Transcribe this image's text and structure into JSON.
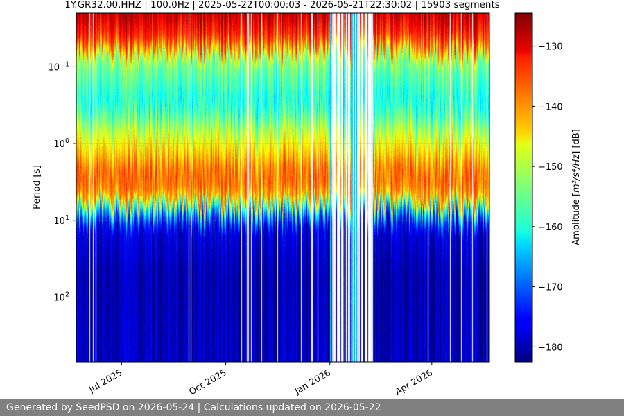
{
  "chart_data": {
    "type": "heatmap",
    "title": "1Y.GR32.00.HHZ | 100.0Hz | 2025-05-22T00:00:03 - 2026-05-21T22:30:02 | 15903 segments",
    "ylabel": "Period [s]",
    "xlabel": "",
    "y_scale": "log",
    "y_inverted": true,
    "ylim": [
      0.02,
      700
    ],
    "grid": true,
    "colormap": "jet",
    "x_ticks": [
      "Jul 2025",
      "Oct 2025",
      "Jan 2026",
      "Apr 2026"
    ],
    "y_ticks": [
      {
        "base": "10",
        "exp": "−1",
        "value": 0.1
      },
      {
        "base": "10",
        "exp": "0",
        "value": 1
      },
      {
        "base": "10",
        "exp": "1",
        "value": 10
      },
      {
        "base": "10",
        "exp": "2",
        "value": 100
      }
    ],
    "colorbar": {
      "label_prefix": "Amplitude [",
      "label_units": "m²/s⁴/Hz",
      "label_suffix": "] [dB]",
      "ticks": [
        "−130",
        "−140",
        "−150",
        "−160",
        "−170",
        "−180"
      ],
      "range": [
        -182.5,
        -124.5
      ]
    },
    "data_gap": {
      "start": "2026-01-01",
      "end": "2026-02-08"
    },
    "profile_db_by_period": [
      {
        "period": 0.02,
        "db": -128
      },
      {
        "period": 0.05,
        "db": -137
      },
      {
        "period": 0.08,
        "db": -153
      },
      {
        "period": 0.3,
        "db": -160
      },
      {
        "period": 0.8,
        "db": -149
      },
      {
        "period": 2.5,
        "db": -137
      },
      {
        "period": 5,
        "db": -141
      },
      {
        "period": 8,
        "db": -165
      },
      {
        "period": 12,
        "db": -177
      },
      {
        "period": 50,
        "db": -180
      },
      {
        "period": 700,
        "db": -179
      }
    ]
  },
  "footer": {
    "text": "Generated by SeedPSD on 2026-05-24 | Calculations updated on 2026-05-22"
  }
}
